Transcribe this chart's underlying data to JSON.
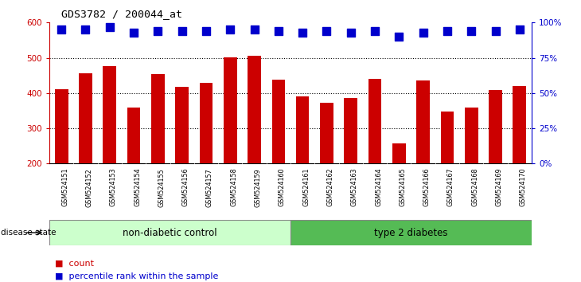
{
  "title": "GDS3782 / 200044_at",
  "samples": [
    "GSM524151",
    "GSM524152",
    "GSM524153",
    "GSM524154",
    "GSM524155",
    "GSM524156",
    "GSM524157",
    "GSM524158",
    "GSM524159",
    "GSM524160",
    "GSM524161",
    "GSM524162",
    "GSM524163",
    "GSM524164",
    "GSM524165",
    "GSM524166",
    "GSM524167",
    "GSM524168",
    "GSM524169",
    "GSM524170"
  ],
  "counts": [
    410,
    456,
    477,
    360,
    453,
    418,
    428,
    502,
    505,
    437,
    390,
    372,
    385,
    440,
    258,
    436,
    348,
    360,
    408,
    420
  ],
  "percentiles": [
    95,
    95,
    97,
    93,
    94,
    94,
    94,
    95,
    95,
    94,
    93,
    94,
    93,
    94,
    90,
    93,
    94,
    94,
    94,
    95
  ],
  "bar_color": "#cc0000",
  "dot_color": "#0000cc",
  "ylim_left": [
    200,
    600
  ],
  "yticks_left": [
    200,
    300,
    400,
    500,
    600
  ],
  "ylim_right": [
    0,
    100
  ],
  "yticks_right": [
    0,
    25,
    50,
    75,
    100
  ],
  "group1_label": "non-diabetic control",
  "group2_label": "type 2 diabetes",
  "group1_count": 10,
  "group2_count": 10,
  "group1_color": "#ccffcc",
  "group2_color": "#55bb55",
  "xlabel_bar": "disease state",
  "legend_count_label": "count",
  "legend_pct_label": "percentile rank within the sample",
  "title_color": "#000000",
  "left_axis_color": "#cc0000",
  "right_axis_color": "#0000cc",
  "grid_color": "#000000",
  "tick_label_color_left": "#cc0000",
  "tick_label_color_right": "#0000cc",
  "bar_width": 0.55,
  "dot_size": 45,
  "xlabels_bg": "#d0d0d0"
}
